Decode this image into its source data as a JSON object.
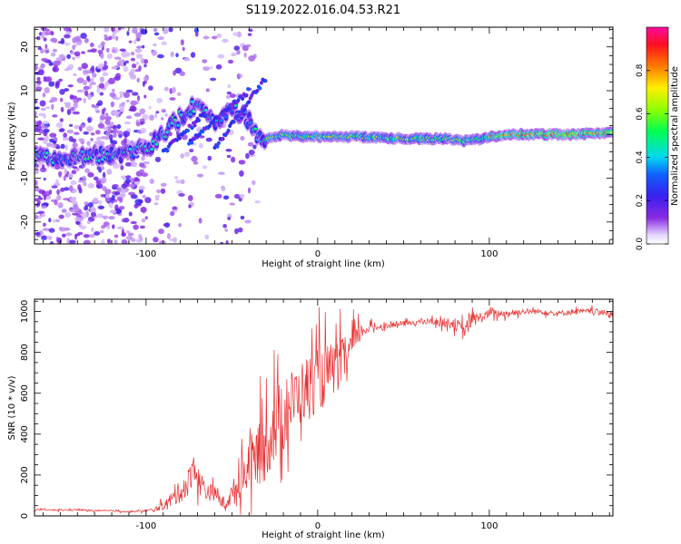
{
  "figure": {
    "title": "S119.2022.016.04.53.R21"
  },
  "chart_data": [
    {
      "type": "heatmap",
      "xlabel": "Height of straight line (km)",
      "ylabel": "Frequency (Hz)",
      "xlim": [
        -165,
        172
      ],
      "ylim": [
        -25,
        24.5
      ],
      "xticks": [
        -100,
        0,
        100
      ],
      "yticks": [
        -20,
        -10,
        0,
        10,
        20
      ],
      "grid": false,
      "colorbar": {
        "label": "Normalized spectral amplitude",
        "range": [
          0,
          1
        ],
        "ticks": [
          0.0,
          0.2,
          0.4,
          0.6,
          0.8
        ],
        "tick_labels": [
          "0.0",
          "0.2",
          "0.4",
          "0.6",
          "0.8"
        ],
        "colormap": "rainbow (purple-blue-cyan-green-yellow-red-magenta)"
      },
      "ridge": {
        "x": [
          -165,
          -150,
          -135,
          -120,
          -110,
          -100,
          -90,
          -80,
          -70,
          -60,
          -50,
          -40,
          -35,
          -30,
          -20,
          -10,
          0,
          10,
          20,
          40,
          60,
          75,
          85,
          95,
          110,
          130,
          150,
          172
        ],
        "y": [
          -5,
          -5,
          -5,
          -4.5,
          -4,
          -3,
          0,
          4,
          7,
          2,
          6,
          3,
          -1,
          -1,
          0,
          -0.5,
          -0.5,
          -0.5,
          -0.5,
          -0.8,
          -1,
          -1,
          -1.5,
          -1,
          0,
          0,
          0,
          0.5
        ]
      }
    },
    {
      "type": "line",
      "xlabel": "Height of straight line (km)",
      "ylabel": "SNR (10 * v/v)",
      "xlim": [
        -165,
        172
      ],
      "ylim": [
        0,
        1060
      ],
      "xticks": [
        -100,
        0,
        100
      ],
      "yticks": [
        0,
        200,
        400,
        600,
        800,
        1000
      ],
      "grid": false,
      "series": [
        {
          "color": "#e83030",
          "x": [
            -165,
            -150,
            -140,
            -130,
            -120,
            -110,
            -100,
            -95,
            -90,
            -85,
            -80,
            -75,
            -72,
            -70,
            -65,
            -60,
            -55,
            -50,
            -45,
            -40,
            -35,
            -30,
            -25,
            -20,
            -15,
            -10,
            -5,
            0,
            5,
            10,
            15,
            20,
            25,
            30,
            40,
            50,
            60,
            70,
            80,
            85,
            90,
            95,
            100,
            110,
            120,
            130,
            140,
            150,
            160,
            172
          ],
          "y": [
            30,
            28,
            30,
            25,
            25,
            20,
            25,
            30,
            50,
            80,
            120,
            170,
            260,
            180,
            120,
            110,
            60,
            100,
            180,
            250,
            300,
            350,
            460,
            480,
            560,
            600,
            640,
            660,
            700,
            720,
            760,
            830,
            900,
            920,
            930,
            940,
            950,
            950,
            940,
            900,
            960,
            970,
            990,
            990,
            1000,
            1000,
            990,
            1000,
            1000,
            990
          ],
          "jitter": [
            4,
            5,
            6,
            5,
            5,
            5,
            8,
            15,
            30,
            50,
            80,
            100,
            120,
            100,
            70,
            50,
            50,
            80,
            140,
            180,
            220,
            260,
            280,
            250,
            230,
            220,
            220,
            230,
            200,
            180,
            160,
            120,
            60,
            30,
            20,
            20,
            20,
            25,
            40,
            60,
            50,
            40,
            30,
            25,
            20,
            20,
            20,
            20,
            20,
            20
          ]
        }
      ]
    }
  ]
}
